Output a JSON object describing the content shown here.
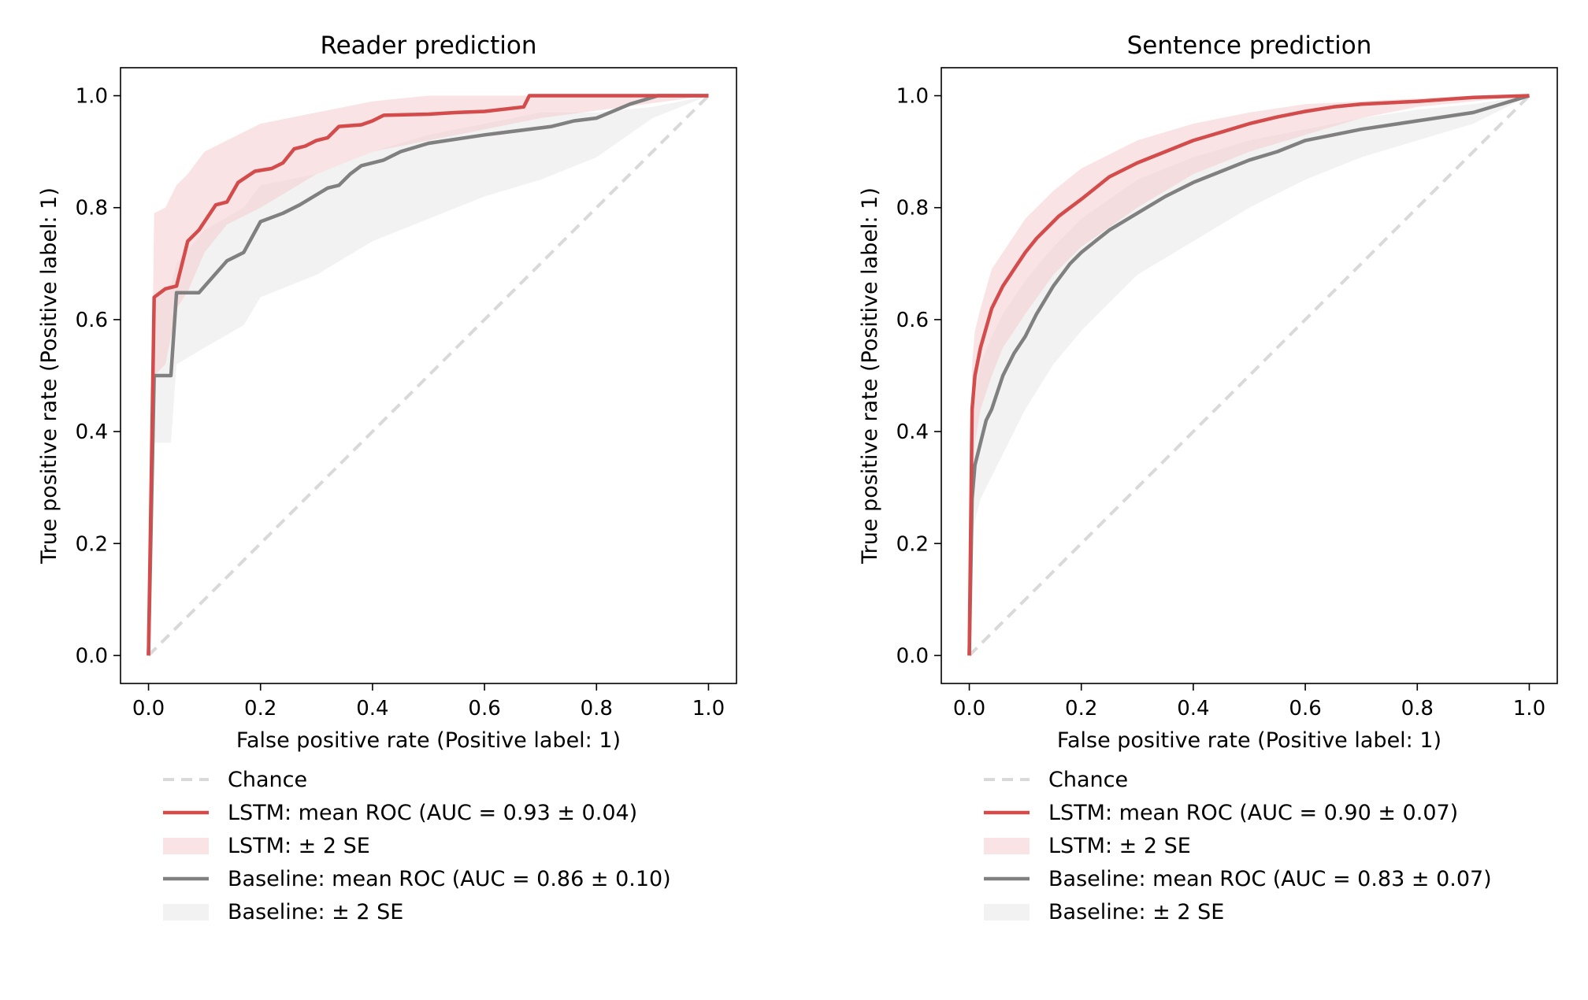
{
  "colors": {
    "lstm": "#d34b4b",
    "lstm_band": "#f4c7c9",
    "baseline": "#808080",
    "baseline_band": "#e3e3e3",
    "chance": "#d9d9d9"
  },
  "legend": {
    "chance": "Chance",
    "lstm_band": "LSTM: ± 2 SE",
    "baseline_band": "Baseline: ± 2 SE"
  },
  "chart_data": [
    {
      "type": "line",
      "title": "Reader prediction",
      "xlabel": "False positive rate (Positive label: 1)",
      "ylabel": "True positive rate (Positive label: 1)",
      "xlim": [
        -0.05,
        1.05
      ],
      "ylim": [
        -0.05,
        1.05
      ],
      "xticks": [
        "0.0",
        "0.2",
        "0.4",
        "0.6",
        "0.8",
        "1.0"
      ],
      "yticks": [
        "0.0",
        "0.2",
        "0.4",
        "0.6",
        "0.8",
        "1.0"
      ],
      "grid": false,
      "legend_position": "below",
      "series": [
        {
          "name": "Chance",
          "style": "dashed",
          "x": [
            0,
            1
          ],
          "y": [
            0,
            1
          ]
        },
        {
          "name": "LSTM: mean ROC (AUC = 0.93 ± 0.04)",
          "x": [
            0,
            0.01,
            0.01,
            0.03,
            0.03,
            0.05,
            0.05,
            0.07,
            0.07,
            0.09,
            0.09,
            0.12,
            0.12,
            0.14,
            0.14,
            0.16,
            0.16,
            0.19,
            0.19,
            0.22,
            0.22,
            0.24,
            0.24,
            0.26,
            0.26,
            0.28,
            0.28,
            0.3,
            0.3,
            0.32,
            0.32,
            0.34,
            0.34,
            0.38,
            0.38,
            0.4,
            0.4,
            0.42,
            0.42,
            0.5,
            0.5,
            0.55,
            0.55,
            0.6,
            0.6,
            0.67,
            0.67,
            0.68,
            0.68,
            1.0
          ],
          "y": [
            0,
            0.64,
            0.64,
            0.655,
            0.655,
            0.66,
            0.66,
            0.74,
            0.74,
            0.76,
            0.76,
            0.805,
            0.805,
            0.81,
            0.81,
            0.845,
            0.845,
            0.865,
            0.865,
            0.87,
            0.87,
            0.88,
            0.88,
            0.905,
            0.905,
            0.91,
            0.91,
            0.92,
            0.92,
            0.925,
            0.925,
            0.945,
            0.945,
            0.948,
            0.948,
            0.955,
            0.955,
            0.965,
            0.965,
            0.967,
            0.967,
            0.97,
            0.97,
            0.972,
            0.972,
            0.98,
            0.98,
            1.0,
            1.0,
            1.0
          ]
        },
        {
          "name": "LSTM: ± 2 SE",
          "type": "band",
          "x": [
            0,
            0.01,
            0.03,
            0.05,
            0.07,
            0.1,
            0.14,
            0.2,
            0.3,
            0.4,
            0.5,
            0.6,
            0.7,
            1.0
          ],
          "upper": [
            0,
            0.79,
            0.8,
            0.84,
            0.86,
            0.9,
            0.92,
            0.95,
            0.97,
            0.99,
            1.0,
            1.0,
            1.0,
            1.0
          ],
          "lower": [
            0,
            0.5,
            0.52,
            0.62,
            0.65,
            0.72,
            0.77,
            0.8,
            0.86,
            0.9,
            0.92,
            0.94,
            0.96,
            1.0
          ]
        },
        {
          "name": "Baseline: mean ROC (AUC = 0.86 ± 0.10)",
          "x": [
            0,
            0.01,
            0.01,
            0.04,
            0.04,
            0.05,
            0.05,
            0.09,
            0.09,
            0.14,
            0.14,
            0.17,
            0.17,
            0.2,
            0.2,
            0.24,
            0.24,
            0.27,
            0.27,
            0.32,
            0.32,
            0.34,
            0.34,
            0.36,
            0.36,
            0.38,
            0.38,
            0.42,
            0.42,
            0.45,
            0.45,
            0.5,
            0.5,
            0.6,
            0.6,
            0.72,
            0.72,
            0.76,
            0.76,
            0.8,
            0.8,
            0.86,
            0.86,
            0.91,
            0.91,
            1.0
          ],
          "y": [
            0,
            0.5,
            0.5,
            0.5,
            0.5,
            0.648,
            0.648,
            0.648,
            0.648,
            0.705,
            0.705,
            0.72,
            0.72,
            0.775,
            0.775,
            0.79,
            0.79,
            0.805,
            0.805,
            0.835,
            0.835,
            0.84,
            0.84,
            0.86,
            0.86,
            0.875,
            0.875,
            0.885,
            0.885,
            0.9,
            0.9,
            0.915,
            0.915,
            0.93,
            0.93,
            0.945,
            0.945,
            0.955,
            0.955,
            0.96,
            0.96,
            0.985,
            0.985,
            1.0,
            1.0,
            1.0
          ]
        },
        {
          "name": "Baseline: ± 2 SE",
          "type": "band",
          "x": [
            0,
            0.01,
            0.04,
            0.05,
            0.1,
            0.17,
            0.2,
            0.3,
            0.4,
            0.5,
            0.6,
            0.7,
            0.8,
            0.9,
            1.0
          ],
          "upper": [
            0,
            0.64,
            0.66,
            0.7,
            0.76,
            0.8,
            0.84,
            0.86,
            0.9,
            0.93,
            0.95,
            0.97,
            0.97,
            0.98,
            1.0
          ],
          "lower": [
            0,
            0.38,
            0.38,
            0.52,
            0.55,
            0.59,
            0.64,
            0.68,
            0.74,
            0.78,
            0.82,
            0.85,
            0.89,
            0.96,
            1.0
          ]
        }
      ]
    },
    {
      "type": "line",
      "title": "Sentence prediction",
      "xlabel": "False positive rate (Positive label: 1)",
      "ylabel": "True positive rate (Positive label: 1)",
      "xlim": [
        -0.05,
        1.05
      ],
      "ylim": [
        -0.05,
        1.05
      ],
      "xticks": [
        "0.0",
        "0.2",
        "0.4",
        "0.6",
        "0.8",
        "1.0"
      ],
      "yticks": [
        "0.0",
        "0.2",
        "0.4",
        "0.6",
        "0.8",
        "1.0"
      ],
      "grid": false,
      "legend_position": "below",
      "series": [
        {
          "name": "Chance",
          "style": "dashed",
          "x": [
            0,
            1
          ],
          "y": [
            0,
            1
          ]
        },
        {
          "name": "LSTM: mean ROC (AUC = 0.90 ± 0.07)",
          "x": [
            0,
            0.005,
            0.01,
            0.02,
            0.03,
            0.04,
            0.05,
            0.06,
            0.07,
            0.08,
            0.1,
            0.12,
            0.14,
            0.16,
            0.18,
            0.2,
            0.25,
            0.3,
            0.35,
            0.4,
            0.45,
            0.5,
            0.55,
            0.6,
            0.65,
            0.7,
            0.8,
            0.9,
            1.0
          ],
          "y": [
            0,
            0.44,
            0.5,
            0.55,
            0.585,
            0.62,
            0.64,
            0.66,
            0.675,
            0.69,
            0.72,
            0.745,
            0.765,
            0.785,
            0.8,
            0.815,
            0.855,
            0.88,
            0.9,
            0.92,
            0.935,
            0.95,
            0.962,
            0.972,
            0.98,
            0.985,
            0.99,
            0.997,
            1.0
          ]
        },
        {
          "name": "LSTM: ± 2 SE",
          "type": "band",
          "x": [
            0,
            0.005,
            0.01,
            0.02,
            0.04,
            0.06,
            0.08,
            0.1,
            0.15,
            0.2,
            0.3,
            0.4,
            0.5,
            0.6,
            0.7,
            0.8,
            0.9,
            1.0
          ],
          "upper": [
            0,
            0.52,
            0.58,
            0.62,
            0.69,
            0.72,
            0.75,
            0.78,
            0.83,
            0.87,
            0.92,
            0.95,
            0.97,
            0.985,
            0.99,
            0.995,
            1.0,
            1.0
          ],
          "lower": [
            0,
            0.3,
            0.38,
            0.44,
            0.5,
            0.55,
            0.58,
            0.61,
            0.68,
            0.73,
            0.8,
            0.86,
            0.9,
            0.93,
            0.96,
            0.98,
            0.99,
            1.0
          ]
        },
        {
          "name": "Baseline: mean ROC (AUC = 0.83 ± 0.07)",
          "x": [
            0,
            0.005,
            0.01,
            0.02,
            0.03,
            0.04,
            0.05,
            0.06,
            0.08,
            0.1,
            0.12,
            0.15,
            0.18,
            0.2,
            0.25,
            0.3,
            0.35,
            0.4,
            0.45,
            0.5,
            0.55,
            0.6,
            0.65,
            0.7,
            0.8,
            0.9,
            1.0
          ],
          "y": [
            0,
            0.28,
            0.34,
            0.38,
            0.42,
            0.44,
            0.47,
            0.5,
            0.54,
            0.57,
            0.61,
            0.66,
            0.7,
            0.72,
            0.76,
            0.79,
            0.82,
            0.845,
            0.865,
            0.885,
            0.9,
            0.92,
            0.93,
            0.94,
            0.955,
            0.97,
            1.0
          ]
        },
        {
          "name": "Baseline: ± 2 SE",
          "type": "band",
          "x": [
            0,
            0.005,
            0.01,
            0.02,
            0.04,
            0.06,
            0.08,
            0.1,
            0.15,
            0.2,
            0.3,
            0.4,
            0.5,
            0.6,
            0.7,
            0.8,
            0.9,
            1.0
          ],
          "upper": [
            0,
            0.4,
            0.46,
            0.52,
            0.57,
            0.61,
            0.64,
            0.67,
            0.73,
            0.78,
            0.85,
            0.89,
            0.92,
            0.94,
            0.96,
            0.975,
            0.985,
            1.0
          ],
          "lower": [
            0,
            0.2,
            0.24,
            0.28,
            0.32,
            0.36,
            0.4,
            0.44,
            0.52,
            0.58,
            0.68,
            0.74,
            0.8,
            0.85,
            0.89,
            0.92,
            0.95,
            1.0
          ]
        }
      ]
    }
  ]
}
